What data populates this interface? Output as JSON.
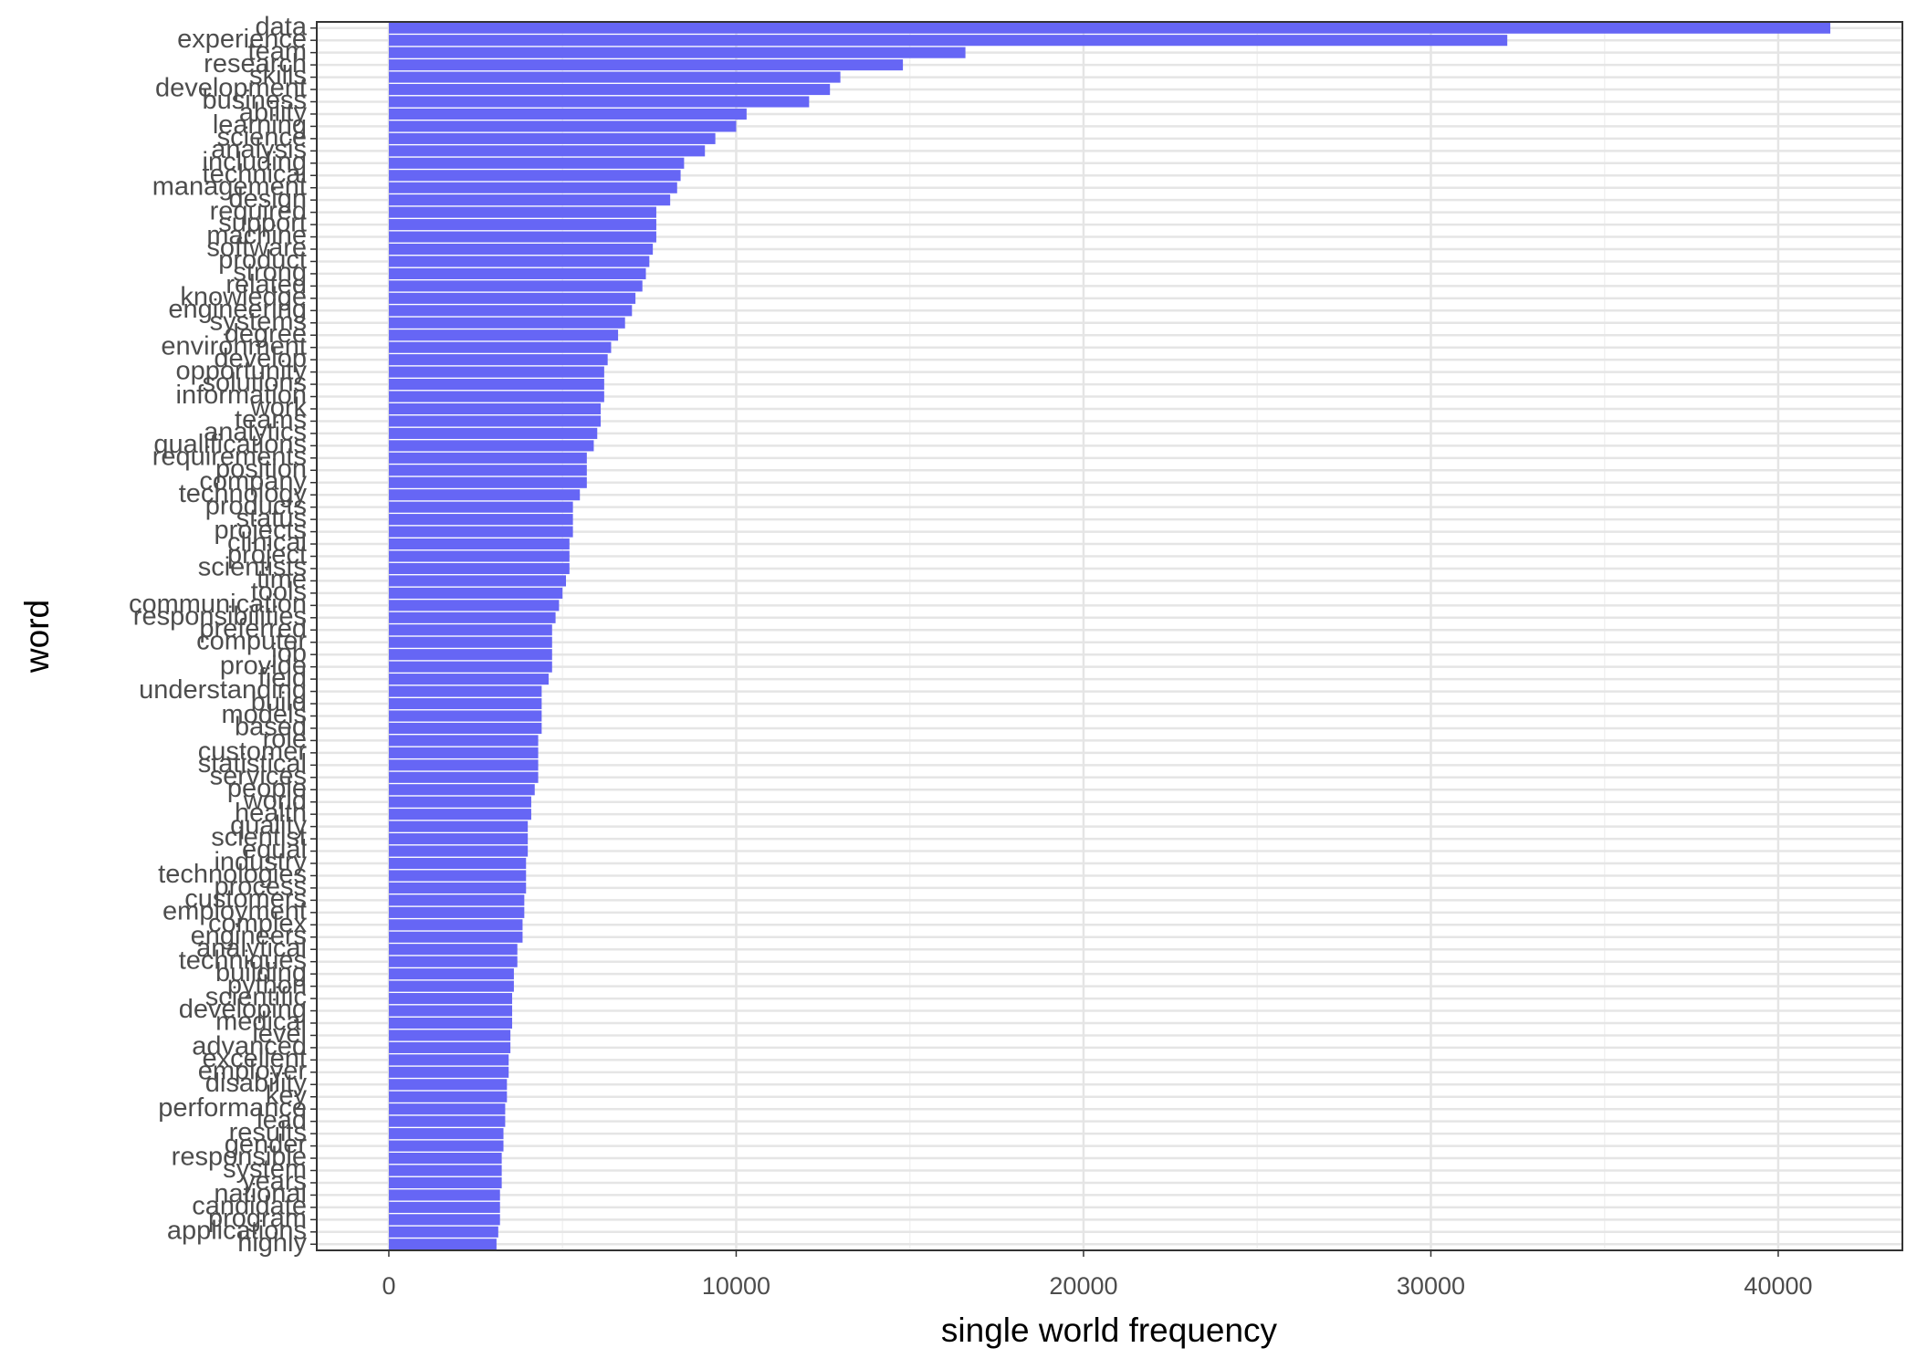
{
  "chart_data": {
    "type": "bar",
    "orientation": "horizontal",
    "xlabel": "single world frequency",
    "ylabel": "word",
    "categories": [
      "data",
      "experience",
      "team",
      "research",
      "skills",
      "development",
      "business",
      "ability",
      "learning",
      "science",
      "analysis",
      "including",
      "technical",
      "management",
      "design",
      "required",
      "support",
      "machine",
      "software",
      "product",
      "strong",
      "related",
      "knowledge",
      "engineering",
      "systems",
      "degree",
      "environment",
      "develop",
      "opportunity",
      "solutions",
      "information",
      "work",
      "teams",
      "analytics",
      "qualifications",
      "requirements",
      "position",
      "company",
      "technology",
      "products",
      "status",
      "projects",
      "clinical",
      "project",
      "scientists",
      "time",
      "tools",
      "communication",
      "responsibilities",
      "preferred",
      "computer",
      "job",
      "provide",
      "field",
      "understanding",
      "build",
      "models",
      "based",
      "role",
      "customer",
      "statistical",
      "services",
      "people",
      "world",
      "health",
      "quality",
      "scientist",
      "equal",
      "industry",
      "technologies",
      "process",
      "customers",
      "employment",
      "complex",
      "engineers",
      "analytical",
      "techniques",
      "building",
      "python",
      "scientific",
      "developing",
      "medical",
      "level",
      "advanced",
      "excellent",
      "employer",
      "disability",
      "key",
      "performance",
      "lead",
      "results",
      "gender",
      "responsible",
      "system",
      "years",
      "national",
      "candidate",
      "program",
      "applications",
      "highly"
    ],
    "values": [
      41500,
      32200,
      16600,
      14800,
      13000,
      12700,
      12100,
      10300,
      10000,
      9400,
      9100,
      8500,
      8400,
      8300,
      8100,
      7700,
      7700,
      7700,
      7600,
      7500,
      7400,
      7300,
      7100,
      7000,
      6800,
      6600,
      6400,
      6300,
      6200,
      6200,
      6200,
      6100,
      6100,
      6000,
      5900,
      5700,
      5700,
      5700,
      5500,
      5300,
      5300,
      5300,
      5200,
      5200,
      5200,
      5100,
      5000,
      4900,
      4800,
      4700,
      4700,
      4700,
      4700,
      4600,
      4400,
      4400,
      4400,
      4400,
      4300,
      4300,
      4300,
      4300,
      4200,
      4100,
      4100,
      4000,
      4000,
      4000,
      3950,
      3950,
      3950,
      3900,
      3900,
      3850,
      3850,
      3700,
      3700,
      3600,
      3600,
      3550,
      3550,
      3550,
      3500,
      3500,
      3450,
      3450,
      3400,
      3400,
      3350,
      3350,
      3300,
      3300,
      3250,
      3250,
      3250,
      3200,
      3200,
      3200,
      3150,
      3100
    ],
    "color": "#6666f5",
    "xlim": [
      -2075,
      43575
    ],
    "xticks": [
      0,
      10000,
      20000,
      30000,
      40000
    ],
    "grid": true
  }
}
